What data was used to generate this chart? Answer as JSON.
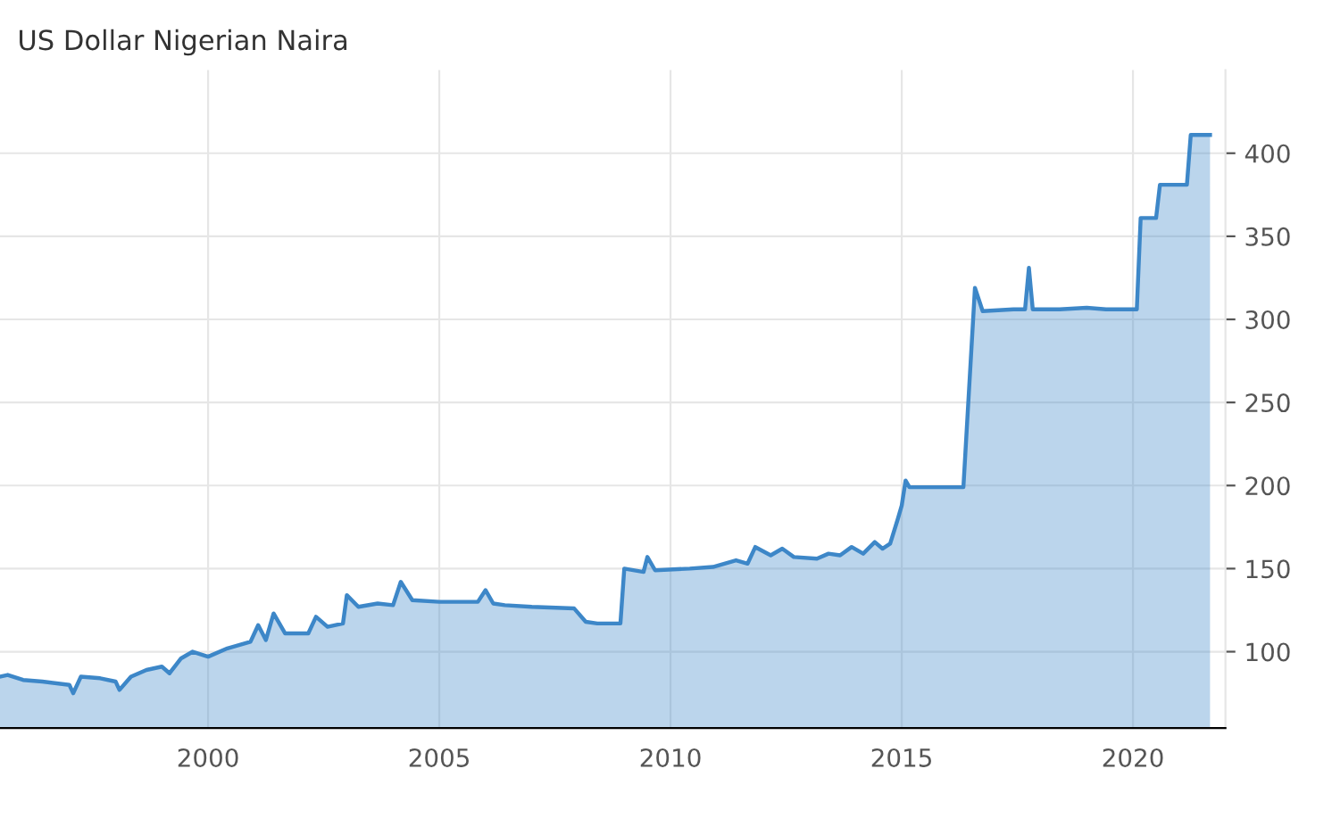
{
  "chart_data": {
    "type": "area",
    "title": "US Dollar Nigerian Naira",
    "x": [
      "1995-07",
      "1995-09",
      "1996-01",
      "1996-06",
      "1997-01",
      "1997-02",
      "1997-04",
      "1997-09",
      "1998-01",
      "1998-02",
      "1998-05",
      "1998-09",
      "1999-01",
      "1999-03",
      "1999-06",
      "1999-09",
      "2000-01",
      "2000-06",
      "2000-12",
      "2001-02",
      "2001-04",
      "2001-06",
      "2001-09",
      "2002-03",
      "2002-05",
      "2002-08",
      "2002-12",
      "2003-01",
      "2003-04",
      "2003-09",
      "2004-01",
      "2004-03",
      "2004-06",
      "2005-01",
      "2005-11",
      "2006-01",
      "2006-03",
      "2006-06",
      "2007-01",
      "2007-12",
      "2008-03",
      "2008-06",
      "2008-12",
      "2009-01",
      "2009-06",
      "2009-07",
      "2009-09",
      "2010-06",
      "2010-12",
      "2011-06",
      "2011-09",
      "2011-11",
      "2012-03",
      "2012-06",
      "2012-09",
      "2013-03",
      "2013-06",
      "2013-09",
      "2013-12",
      "2014-03",
      "2014-06",
      "2014-08",
      "2014-10",
      "2014-12",
      "2015-01",
      "2015-02",
      "2015-03",
      "2016-05",
      "2016-08",
      "2016-10",
      "2017-06",
      "2017-09",
      "2017-10",
      "2017-11",
      "2018-06",
      "2019-01",
      "2019-06",
      "2020-02",
      "2020-03",
      "2020-07",
      "2020-08",
      "2021-03",
      "2021-04",
      "2021-09"
    ],
    "series": [
      {
        "color": "#3d87c8",
        "values": [
          85,
          86,
          83,
          82,
          80,
          75,
          85,
          84,
          82,
          77,
          85,
          89,
          91,
          87,
          96,
          100,
          97,
          102,
          106,
          116,
          107,
          123,
          111,
          111,
          121,
          115,
          117,
          134,
          127,
          129,
          128,
          142,
          131,
          130,
          130,
          137,
          129,
          128,
          127,
          126,
          118,
          117,
          117,
          150,
          148,
          157,
          149,
          150,
          151,
          155,
          153,
          163,
          158,
          162,
          157,
          156,
          159,
          158,
          163,
          159,
          166,
          162,
          165,
          180,
          188,
          203,
          199,
          199,
          319,
          305,
          306,
          306,
          331,
          306,
          306,
          307,
          306,
          306,
          361,
          361,
          381,
          381,
          411,
          411
        ]
      }
    ],
    "xlim": [
      "1995-07",
      "2022-01"
    ],
    "xticks": [
      "2000",
      "2005",
      "2010",
      "2015",
      "2020"
    ],
    "ylim": [
      54,
      450
    ],
    "yticks": [
      100,
      150,
      200,
      250,
      300,
      350,
      400
    ],
    "grid": true
  }
}
